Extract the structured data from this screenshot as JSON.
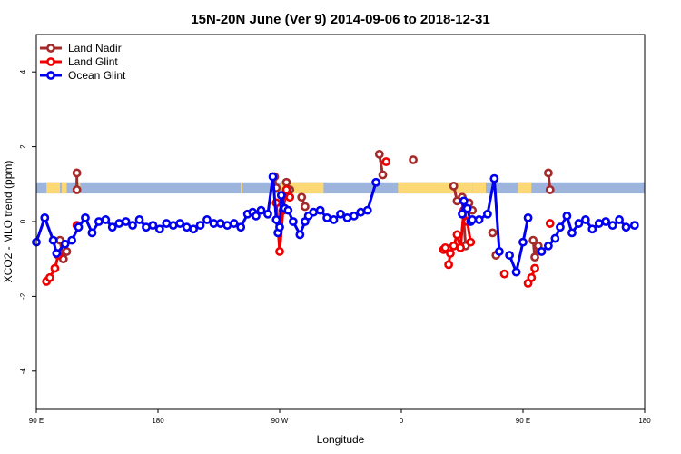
{
  "chart_data": {
    "type": "line",
    "title": "15N-20N June (Ver 9)   2014-09-06 to 2018-12-31",
    "xlabel": "Longitude",
    "ylabel": "XCO2 - MLO trend (ppm)",
    "xlim": [
      -90,
      270
    ],
    "ylim": [
      -5,
      5
    ],
    "x_ticks": [
      {
        "value": -90,
        "label": "90 E"
      },
      {
        "value": -18,
        "label": "180"
      },
      {
        "value": 54,
        "label": "90 W"
      },
      {
        "value": 126,
        "label": "0"
      },
      {
        "value": 198,
        "label": "90 E"
      },
      {
        "value": 270,
        "label": "180"
      }
    ],
    "y_ticks": [
      -4,
      -2,
      0,
      2,
      4
    ],
    "legend_position": "top-left",
    "land_band": {
      "y_range": [
        0.75,
        1.05
      ],
      "ocean_color": "#9db4dc",
      "land_color": "#fcd975",
      "land_segments": [
        [
          -84,
          -76
        ],
        [
          -75,
          -72
        ],
        [
          -65,
          -64
        ],
        [
          31,
          32
        ],
        [
          55,
          80
        ],
        [
          124,
          168
        ],
        [
          168,
          176
        ],
        [
          180,
          182
        ],
        [
          195,
          203
        ]
      ]
    },
    "series": [
      {
        "name": "Land Nadir",
        "color": "#a52a2a",
        "segments": [
          [
            [
              -76,
              -0.5
            ],
            [
              -74,
              -1.0
            ],
            [
              -72,
              -0.8
            ]
          ],
          [
            [
              -66,
              1.3
            ],
            [
              -66,
              0.85
            ]
          ],
          [
            [
              51,
              1.2
            ],
            [
              52,
              0.9
            ]
          ],
          [
            [
              58,
              1.05
            ],
            [
              60,
              0.85
            ]
          ],
          [
            [
              67,
              0.65
            ],
            [
              69,
              0.4
            ]
          ],
          [
            [
              113,
              1.8
            ],
            [
              115,
              1.25
            ]
          ],
          [
            [
              133,
              1.65
            ]
          ],
          [
            [
              157,
              0.95
            ],
            [
              159,
              0.55
            ],
            [
              162,
              0.65
            ],
            [
              164,
              -0.65
            ]
          ],
          [
            [
              166,
              0.5
            ],
            [
              168,
              0.3
            ]
          ],
          [
            [
              180,
              -0.3
            ]
          ],
          [
            [
              182,
              -0.9
            ]
          ],
          [
            [
              204,
              -0.5
            ],
            [
              205,
              -0.95
            ],
            [
              207,
              -0.65
            ]
          ],
          [
            [
              213,
              1.3
            ],
            [
              214,
              0.85
            ]
          ]
        ]
      },
      {
        "name": "Land Glint",
        "color": "#ee0000",
        "segments": [
          [
            [
              -84,
              -1.6
            ],
            [
              -82,
              -1.5
            ],
            [
              -79,
              -1.25
            ],
            [
              -77,
              -0.9
            ]
          ],
          [
            [
              -66,
              -0.1
            ]
          ],
          [
            [
              52,
              0.5
            ],
            [
              54,
              -0.8
            ],
            [
              56,
              0.3
            ],
            [
              58,
              0.85
            ],
            [
              60,
              0.65
            ]
          ],
          [
            [
              117,
              1.6
            ]
          ],
          [
            [
              151,
              -0.75
            ],
            [
              152,
              -0.7
            ]
          ],
          [
            [
              154,
              -1.15
            ],
            [
              155,
              -0.85
            ],
            [
              157,
              -0.65
            ],
            [
              159,
              -0.35
            ],
            [
              161,
              -0.7
            ],
            [
              163,
              0.3
            ],
            [
              165,
              0
            ],
            [
              167,
              -0.55
            ]
          ],
          [
            [
              187,
              -1.4
            ]
          ],
          [
            [
              201,
              -1.65
            ],
            [
              203,
              -1.5
            ],
            [
              205,
              -1.25
            ]
          ],
          [
            [
              214,
              -0.05
            ]
          ]
        ]
      },
      {
        "name": "Ocean Glint",
        "color": "#0000ee",
        "segments": [
          [
            [
              -90,
              -0.55
            ],
            [
              -85,
              0.1
            ],
            [
              -80,
              -0.5
            ],
            [
              -78,
              -0.85
            ],
            [
              -73,
              -0.6
            ],
            [
              -69,
              -0.5
            ],
            [
              -65,
              -0.15
            ],
            [
              -61,
              0.1
            ],
            [
              -57,
              -0.3
            ],
            [
              -53,
              0
            ],
            [
              -49,
              0.05
            ],
            [
              -45,
              -0.15
            ],
            [
              -41,
              -0.05
            ],
            [
              -37,
              0
            ],
            [
              -33,
              -0.1
            ],
            [
              -29,
              0.05
            ],
            [
              -25,
              -0.15
            ],
            [
              -21,
              -0.1
            ],
            [
              -17,
              -0.2
            ],
            [
              -13,
              -0.05
            ],
            [
              -9,
              -0.1
            ],
            [
              -5,
              -0.05
            ],
            [
              -1,
              -0.15
            ],
            [
              3,
              -0.2
            ],
            [
              7,
              -0.1
            ],
            [
              11,
              0.05
            ],
            [
              15,
              -0.05
            ],
            [
              19,
              -0.05
            ],
            [
              23,
              -0.1
            ],
            [
              27,
              -0.05
            ],
            [
              31,
              -0.15
            ],
            [
              35,
              0.2
            ],
            [
              38,
              0.25
            ],
            [
              40,
              0.15
            ],
            [
              43,
              0.3
            ],
            [
              47,
              0.2
            ],
            [
              50,
              1.2
            ],
            [
              52,
              0.05
            ],
            [
              53,
              -0.3
            ],
            [
              54,
              -0.15
            ],
            [
              55,
              0.7
            ],
            [
              57,
              0.35
            ],
            [
              59,
              0.3
            ],
            [
              62,
              0
            ],
            [
              66,
              -0.35
            ],
            [
              69,
              0
            ],
            [
              71,
              0.15
            ],
            [
              74,
              0.25
            ],
            [
              78,
              0.3
            ],
            [
              82,
              0.1
            ],
            [
              86,
              0.05
            ],
            [
              90,
              0.2
            ],
            [
              94,
              0.1
            ],
            [
              98,
              0.15
            ],
            [
              102,
              0.25
            ],
            [
              106,
              0.3
            ],
            [
              111,
              1.05
            ]
          ],
          [
            [
              162,
              0.2
            ],
            [
              163,
              0.55
            ],
            [
              165,
              0.35
            ],
            [
              167,
              0
            ],
            [
              168,
              0.05
            ],
            [
              172,
              0.05
            ],
            [
              177,
              0.2
            ],
            [
              181,
              1.15
            ],
            [
              184,
              -0.8
            ]
          ],
          [
            [
              190,
              -0.9
            ],
            [
              194,
              -1.35
            ],
            [
              198,
              -0.55
            ],
            [
              201,
              0.1
            ]
          ],
          [
            [
              209,
              -0.8
            ],
            [
              213,
              -0.65
            ],
            [
              217,
              -0.45
            ],
            [
              220,
              -0.15
            ],
            [
              224,
              0.15
            ],
            [
              227,
              -0.3
            ],
            [
              231,
              -0.05
            ],
            [
              235,
              0.05
            ],
            [
              239,
              -0.2
            ],
            [
              243,
              -0.05
            ],
            [
              247,
              0
            ],
            [
              251,
              -0.1
            ],
            [
              255,
              0.05
            ],
            [
              259,
              -0.15
            ],
            [
              264,
              -0.1
            ]
          ]
        ]
      }
    ]
  }
}
